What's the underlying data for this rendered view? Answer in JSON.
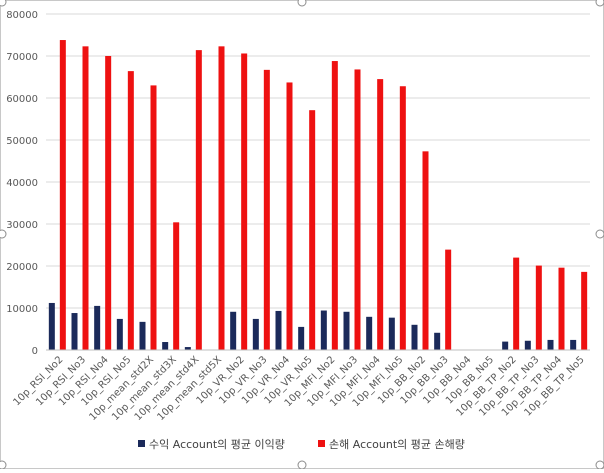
{
  "chart_data": {
    "type": "bar",
    "title": "",
    "xlabel": "",
    "ylabel": "",
    "ylim": [
      0,
      80000
    ],
    "yticks": [
      0,
      10000,
      20000,
      30000,
      40000,
      50000,
      60000,
      70000,
      80000
    ],
    "grid": true,
    "legend_position": "bottom",
    "categories": [
      "10p_RSI_No2",
      "10p_RSI_No3",
      "10p_RSI_No4",
      "10p_RSI_No5",
      "10p_mean_std2X",
      "10p_mean_std3X",
      "10p_mean_std4X",
      "10p_mean_std5X",
      "10p_VR_No2",
      "10p_VR_No3",
      "10p_VR_No4",
      "10p_VR_No5",
      "10p_MFI_No2",
      "10p_MFI_No3",
      "10p_MFI_No4",
      "10p_MFI_No5",
      "10p_BB_No2",
      "10p_BB_No3",
      "10p_BB_No4",
      "10p_BB_No5",
      "10p_BB_TP_No2",
      "10p_BB_TP_No3",
      "10p_BB_TP_No4",
      "10p_BB_TP_No5"
    ],
    "series": [
      {
        "name": "수익 Account의 평균 이익량",
        "color": "#1b2a5a",
        "values": [
          11200,
          8800,
          10500,
          7400,
          6700,
          1900,
          700,
          0,
          9100,
          7400,
          9300,
          5500,
          9400,
          9100,
          7900,
          7700,
          6000,
          4100,
          0,
          0,
          2000,
          2200,
          2400,
          2400
        ]
      },
      {
        "name": "손해 Account의 평균 손해량",
        "color": "#ee1111",
        "values": [
          73800,
          72300,
          70000,
          66400,
          63000,
          30400,
          71400,
          72300,
          70600,
          66700,
          63700,
          57100,
          68800,
          66800,
          64500,
          62800,
          47300,
          23900,
          0,
          0,
          22000,
          20100,
          19600,
          18600
        ]
      }
    ]
  }
}
